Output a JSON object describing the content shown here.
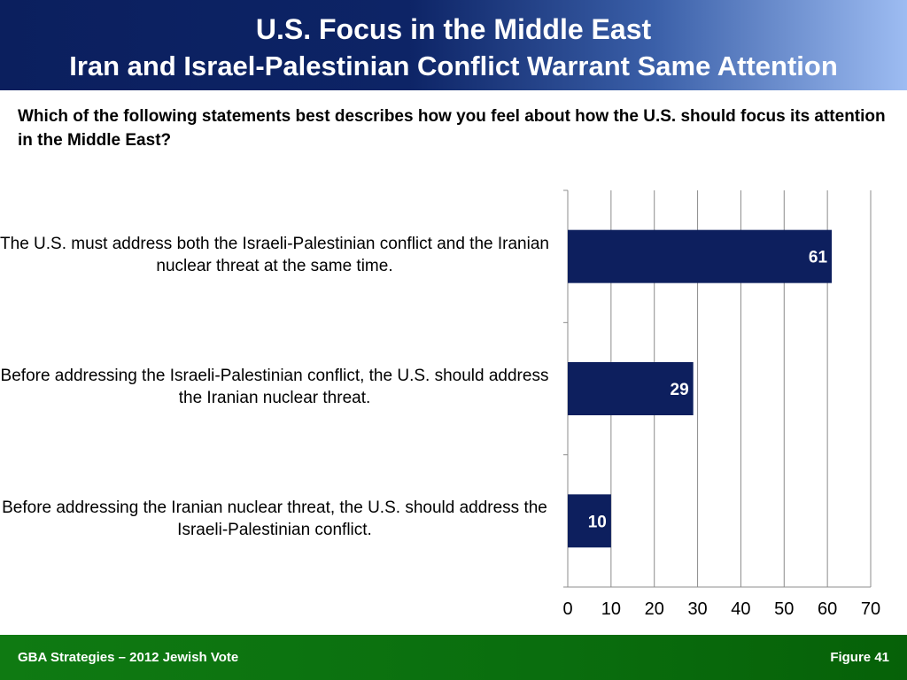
{
  "header": {
    "title": "U.S. Focus in the Middle East",
    "subtitle": "Iran and Israel-Palestinian Conflict Warrant Same Attention"
  },
  "question": "Which of the following statements best describes how you feel about how the U.S. should focus its attention in the Middle East?",
  "chart_data": {
    "type": "bar",
    "orientation": "horizontal",
    "categories": [
      "The U.S. must address both the Israeli-Palestinian conflict and the Iranian nuclear threat at the same time.",
      "Before addressing the Israeli-Palestinian conflict, the U.S. should address the Iranian nuclear threat.",
      "Before addressing the Iranian nuclear threat, the U.S. should address the Israeli-Palestinian conflict."
    ],
    "values": [
      61,
      29,
      10
    ],
    "xlim": [
      0,
      70
    ],
    "xticks": [
      0,
      10,
      20,
      30,
      40,
      50,
      60,
      70
    ],
    "grid": true,
    "bar_color": "#0d1f5e",
    "label_color": "#ffffff"
  },
  "footer": {
    "source": "GBA Strategies – 2012 Jewish Vote",
    "figure": "Figure  41"
  }
}
